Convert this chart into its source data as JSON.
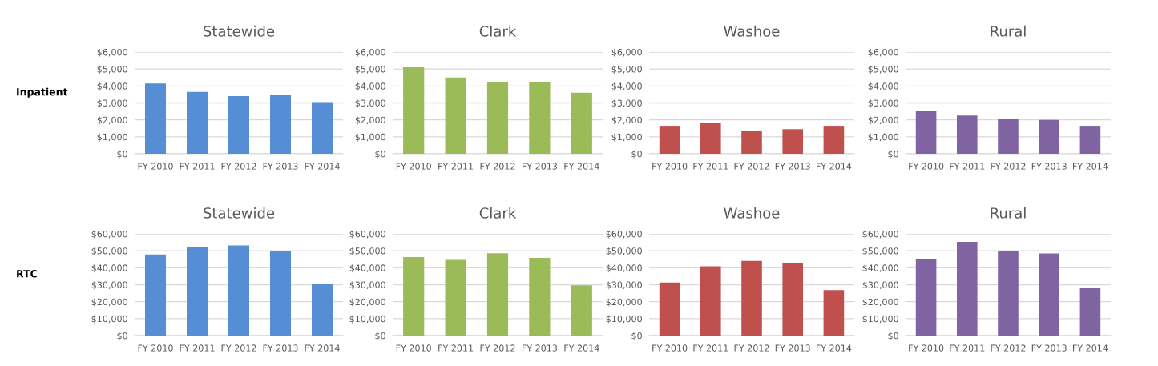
{
  "chart_data": [
    {
      "type": "bar",
      "title": "Statewide",
      "annotations": [
        "Inpatient"
      ],
      "categories": [
        "FY 2010",
        "FY 2011",
        "FY 2012",
        "FY 2013",
        "FY 2014"
      ],
      "values": [
        4150,
        3650,
        3400,
        3500,
        3050
      ],
      "color": "#558ed5",
      "ylim": [
        0,
        6000
      ],
      "yticks": [
        {
          "value": 0,
          "label": "$0"
        },
        {
          "value": 1000,
          "label": "$1,000"
        },
        {
          "value": 2000,
          "label": "$2,000"
        },
        {
          "value": 3000,
          "label": "$3,000"
        },
        {
          "value": 4000,
          "label": "$4,000"
        },
        {
          "value": 5000,
          "label": "$5,000"
        },
        {
          "value": 6000,
          "label": "$6,000"
        }
      ],
      "grid": "y"
    },
    {
      "type": "bar",
      "title": "Clark",
      "categories": [
        "FY 2010",
        "FY 2011",
        "FY 2012",
        "FY 2013",
        "FY 2014"
      ],
      "values": [
        5100,
        4500,
        4200,
        4250,
        3600
      ],
      "color": "#9bbb59",
      "ylim": [
        0,
        6000
      ],
      "yticks": [
        {
          "value": 0,
          "label": "$0"
        },
        {
          "value": 1000,
          "label": "$1,000"
        },
        {
          "value": 2000,
          "label": "$2,000"
        },
        {
          "value": 3000,
          "label": "$3,000"
        },
        {
          "value": 4000,
          "label": "$4,000"
        },
        {
          "value": 5000,
          "label": "$5,000"
        },
        {
          "value": 6000,
          "label": "$6,000"
        }
      ],
      "grid": "y"
    },
    {
      "type": "bar",
      "title": "Washoe",
      "categories": [
        "FY 2010",
        "FY 2011",
        "FY 2012",
        "FY 2013",
        "FY 2014"
      ],
      "values": [
        1650,
        1800,
        1350,
        1450,
        1650
      ],
      "color": "#c0504d",
      "ylim": [
        0,
        6000
      ],
      "yticks": [
        {
          "value": 0,
          "label": "$0"
        },
        {
          "value": 1000,
          "label": "$1,000"
        },
        {
          "value": 2000,
          "label": "$2,000"
        },
        {
          "value": 3000,
          "label": "$3,000"
        },
        {
          "value": 4000,
          "label": "$4,000"
        },
        {
          "value": 5000,
          "label": "$5,000"
        },
        {
          "value": 6000,
          "label": "$6,000"
        }
      ],
      "grid": "y"
    },
    {
      "type": "bar",
      "title": "Rural",
      "categories": [
        "FY 2010",
        "FY 2011",
        "FY 2012",
        "FY 2013",
        "FY 2014"
      ],
      "values": [
        2500,
        2250,
        2050,
        2000,
        1650
      ],
      "color": "#8064a2",
      "ylim": [
        0,
        6000
      ],
      "yticks": [
        {
          "value": 0,
          "label": "$0"
        },
        {
          "value": 1000,
          "label": "$1,000"
        },
        {
          "value": 2000,
          "label": "$2,000"
        },
        {
          "value": 3000,
          "label": "$3,000"
        },
        {
          "value": 4000,
          "label": "$4,000"
        },
        {
          "value": 5000,
          "label": "$5,000"
        },
        {
          "value": 6000,
          "label": "$6,000"
        }
      ],
      "grid": "y"
    },
    {
      "type": "bar",
      "title": "Statewide",
      "annotations": [
        "RTC"
      ],
      "categories": [
        "FY 2010",
        "FY 2011",
        "FY 2012",
        "FY 2013",
        "FY 2014"
      ],
      "values": [
        47800,
        52200,
        53200,
        50000,
        30700
      ],
      "color": "#558ed5",
      "ylim": [
        0,
        60000
      ],
      "yticks": [
        {
          "value": 0,
          "label": "$0"
        },
        {
          "value": 10000,
          "label": "$10,000"
        },
        {
          "value": 20000,
          "label": "$20,000"
        },
        {
          "value": 30000,
          "label": "$30,000"
        },
        {
          "value": 40000,
          "label": "$40,000"
        },
        {
          "value": 50000,
          "label": "$50,000"
        },
        {
          "value": 60000,
          "label": "$60,000"
        }
      ],
      "grid": "y"
    },
    {
      "type": "bar",
      "title": "Clark",
      "categories": [
        "FY 2010",
        "FY 2011",
        "FY 2012",
        "FY 2013",
        "FY 2014"
      ],
      "values": [
        46300,
        44700,
        48500,
        45800,
        29700
      ],
      "color": "#9bbb59",
      "ylim": [
        0,
        60000
      ],
      "yticks": [
        {
          "value": 0,
          "label": "$0"
        },
        {
          "value": 10000,
          "label": "$10,000"
        },
        {
          "value": 20000,
          "label": "$20,000"
        },
        {
          "value": 30000,
          "label": "$30,000"
        },
        {
          "value": 40000,
          "label": "$40,000"
        },
        {
          "value": 50000,
          "label": "$50,000"
        },
        {
          "value": 60000,
          "label": "$60,000"
        }
      ],
      "grid": "y"
    },
    {
      "type": "bar",
      "title": "Washoe",
      "categories": [
        "FY 2010",
        "FY 2011",
        "FY 2012",
        "FY 2013",
        "FY 2014"
      ],
      "values": [
        31300,
        40900,
        44000,
        42500,
        26800
      ],
      "color": "#c0504d",
      "ylim": [
        0,
        60000
      ],
      "yticks": [
        {
          "value": 0,
          "label": "$0"
        },
        {
          "value": 10000,
          "label": "$10,000"
        },
        {
          "value": 20000,
          "label": "$20,000"
        },
        {
          "value": 30000,
          "label": "$30,000"
        },
        {
          "value": 40000,
          "label": "$40,000"
        },
        {
          "value": 50000,
          "label": "$50,000"
        },
        {
          "value": 60000,
          "label": "$60,000"
        }
      ],
      "grid": "y"
    },
    {
      "type": "bar",
      "title": "Rural",
      "categories": [
        "FY 2010",
        "FY 2011",
        "FY 2012",
        "FY 2013",
        "FY 2014"
      ],
      "values": [
        45200,
        55300,
        50000,
        48400,
        28000
      ],
      "color": "#8064a2",
      "ylim": [
        0,
        60000
      ],
      "yticks": [
        {
          "value": 0,
          "label": "$0"
        },
        {
          "value": 10000,
          "label": "$10,000"
        },
        {
          "value": 20000,
          "label": "$20,000"
        },
        {
          "value": 30000,
          "label": "$30,000"
        },
        {
          "value": 40000,
          "label": "$40,000"
        },
        {
          "value": 50000,
          "label": "$50,000"
        },
        {
          "value": 60000,
          "label": "$60,000"
        }
      ],
      "grid": "y"
    }
  ]
}
